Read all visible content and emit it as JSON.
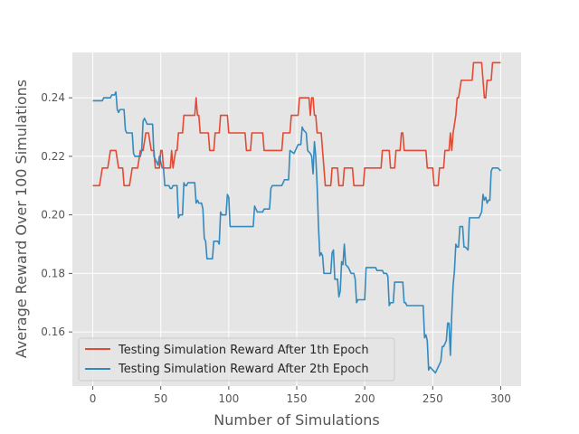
{
  "chart_data": {
    "type": "line",
    "title": "",
    "xlabel": "Number of Simulations",
    "ylabel": "Average Reward Over 100 Simulations",
    "xlim": [
      -15,
      315
    ],
    "ylim": [
      0.1415,
      0.2555
    ],
    "x_ticks": [
      0,
      50,
      100,
      150,
      200,
      250,
      300
    ],
    "y_ticks": [
      0.16,
      0.18,
      0.2,
      0.22,
      0.24
    ],
    "x_tick_labels": [
      "0",
      "50",
      "100",
      "150",
      "200",
      "250",
      "300"
    ],
    "y_tick_labels": [
      "0.16",
      "0.18",
      "0.20",
      "0.22",
      "0.24"
    ],
    "grid": true,
    "legend_position": "lower-left",
    "style": "ggplot",
    "series": [
      {
        "name": "Testing Simulation Reward After 1th Epoch",
        "color": "#E24A33",
        "points": [
          [
            0,
            0.21
          ],
          [
            5,
            0.21
          ],
          [
            7,
            0.216
          ],
          [
            11,
            0.216
          ],
          [
            13,
            0.222
          ],
          [
            17,
            0.222
          ],
          [
            19,
            0.216
          ],
          [
            22,
            0.216
          ],
          [
            23,
            0.21
          ],
          [
            27,
            0.21
          ],
          [
            29,
            0.216
          ],
          [
            33,
            0.216
          ],
          [
            35,
            0.222
          ],
          [
            37,
            0.222
          ],
          [
            39,
            0.228
          ],
          [
            41,
            0.228
          ],
          [
            43,
            0.222
          ],
          [
            45,
            0.222
          ],
          [
            46,
            0.216
          ],
          [
            49,
            0.216
          ],
          [
            50,
            0.222
          ],
          [
            51,
            0.222
          ],
          [
            52,
            0.216
          ],
          [
            57,
            0.216
          ],
          [
            58,
            0.222
          ],
          [
            59,
            0.216
          ],
          [
            61,
            0.222
          ],
          [
            62,
            0.222
          ],
          [
            63,
            0.228
          ],
          [
            66,
            0.228
          ],
          [
            67,
            0.234
          ],
          [
            75,
            0.234
          ],
          [
            76,
            0.24
          ],
          [
            77,
            0.234
          ],
          [
            78,
            0.234
          ],
          [
            79,
            0.228
          ],
          [
            85,
            0.228
          ],
          [
            86,
            0.222
          ],
          [
            89,
            0.222
          ],
          [
            90,
            0.228
          ],
          [
            93,
            0.228
          ],
          [
            94,
            0.234
          ],
          [
            99,
            0.234
          ],
          [
            100,
            0.228
          ],
          [
            112,
            0.228
          ],
          [
            113,
            0.222
          ],
          [
            116,
            0.222
          ],
          [
            117,
            0.228
          ],
          [
            125,
            0.228
          ],
          [
            126,
            0.222
          ],
          [
            139,
            0.222
          ],
          [
            140,
            0.228
          ],
          [
            145,
            0.228
          ],
          [
            146,
            0.234
          ],
          [
            151,
            0.234
          ],
          [
            152,
            0.24
          ],
          [
            159,
            0.24
          ],
          [
            160,
            0.234
          ],
          [
            161,
            0.24
          ],
          [
            162,
            0.24
          ],
          [
            163,
            0.234
          ],
          [
            164,
            0.234
          ],
          [
            165,
            0.228
          ],
          [
            168,
            0.228
          ],
          [
            169,
            0.222
          ],
          [
            170,
            0.216
          ],
          [
            171,
            0.21
          ],
          [
            175,
            0.21
          ],
          [
            176,
            0.216
          ],
          [
            180,
            0.216
          ],
          [
            181,
            0.21
          ],
          [
            184,
            0.21
          ],
          [
            185,
            0.216
          ],
          [
            191,
            0.216
          ],
          [
            192,
            0.21
          ],
          [
            199,
            0.21
          ],
          [
            200,
            0.216
          ],
          [
            212,
            0.216
          ],
          [
            213,
            0.222
          ],
          [
            218,
            0.222
          ],
          [
            219,
            0.216
          ],
          [
            222,
            0.216
          ],
          [
            223,
            0.222
          ],
          [
            226,
            0.222
          ],
          [
            227,
            0.228
          ],
          [
            228,
            0.228
          ],
          [
            229,
            0.222
          ],
          [
            245,
            0.222
          ],
          [
            246,
            0.216
          ],
          [
            250,
            0.216
          ],
          [
            251,
            0.21
          ],
          [
            254,
            0.21
          ],
          [
            255,
            0.216
          ],
          [
            258,
            0.216
          ],
          [
            259,
            0.222
          ],
          [
            262,
            0.222
          ],
          [
            263,
            0.228
          ],
          [
            264,
            0.222
          ],
          [
            265,
            0.228
          ],
          [
            267,
            0.234
          ],
          [
            268,
            0.24
          ],
          [
            269,
            0.24
          ],
          [
            271,
            0.246
          ],
          [
            279,
            0.246
          ],
          [
            280,
            0.252
          ],
          [
            286,
            0.252
          ],
          [
            287,
            0.246
          ],
          [
            288,
            0.24
          ],
          [
            289,
            0.24
          ],
          [
            290,
            0.246
          ],
          [
            293,
            0.246
          ],
          [
            294,
            0.252
          ],
          [
            300,
            0.252
          ]
        ]
      },
      {
        "name": "Testing Simulation Reward After 2th Epoch",
        "color": "#348ABD",
        "points": [
          [
            0,
            0.239
          ],
          [
            7,
            0.239
          ],
          [
            8,
            0.24
          ],
          [
            13,
            0.24
          ],
          [
            14,
            0.241
          ],
          [
            16,
            0.241
          ],
          [
            17,
            0.242
          ],
          [
            18,
            0.236
          ],
          [
            19,
            0.235
          ],
          [
            20,
            0.236
          ],
          [
            23,
            0.236
          ],
          [
            24,
            0.229
          ],
          [
            25,
            0.228
          ],
          [
            29,
            0.228
          ],
          [
            30,
            0.221
          ],
          [
            31,
            0.22
          ],
          [
            35,
            0.22
          ],
          [
            36,
            0.222
          ],
          [
            37,
            0.232
          ],
          [
            38,
            0.233
          ],
          [
            39,
            0.232
          ],
          [
            40,
            0.231
          ],
          [
            44,
            0.231
          ],
          [
            45,
            0.22
          ],
          [
            47,
            0.218
          ],
          [
            48,
            0.217
          ],
          [
            49,
            0.22
          ],
          [
            50,
            0.218
          ],
          [
            51,
            0.216
          ],
          [
            52,
            0.216
          ],
          [
            53,
            0.21
          ],
          [
            56,
            0.21
          ],
          [
            57,
            0.209
          ],
          [
            58,
            0.209
          ],
          [
            59,
            0.21
          ],
          [
            62,
            0.21
          ],
          [
            63,
            0.199
          ],
          [
            64,
            0.2
          ],
          [
            66,
            0.2
          ],
          [
            67,
            0.211
          ],
          [
            68,
            0.21
          ],
          [
            69,
            0.21
          ],
          [
            70,
            0.211
          ],
          [
            75,
            0.211
          ],
          [
            76,
            0.204
          ],
          [
            77,
            0.205
          ],
          [
            78,
            0.204
          ],
          [
            80,
            0.204
          ],
          [
            81,
            0.202
          ],
          [
            82,
            0.192
          ],
          [
            83,
            0.191
          ],
          [
            84,
            0.185
          ],
          [
            88,
            0.185
          ],
          [
            89,
            0.191
          ],
          [
            92,
            0.191
          ],
          [
            93,
            0.19
          ],
          [
            94,
            0.201
          ],
          [
            95,
            0.2
          ],
          [
            98,
            0.2
          ],
          [
            99,
            0.207
          ],
          [
            100,
            0.206
          ],
          [
            101,
            0.196
          ],
          [
            118,
            0.196
          ],
          [
            119,
            0.203
          ],
          [
            120,
            0.202
          ],
          [
            121,
            0.201
          ],
          [
            125,
            0.201
          ],
          [
            126,
            0.202
          ],
          [
            130,
            0.202
          ],
          [
            131,
            0.209
          ],
          [
            132,
            0.21
          ],
          [
            139,
            0.21
          ],
          [
            140,
            0.211
          ],
          [
            141,
            0.212
          ],
          [
            144,
            0.212
          ],
          [
            145,
            0.222
          ],
          [
            148,
            0.221
          ],
          [
            149,
            0.222
          ],
          [
            151,
            0.224
          ],
          [
            153,
            0.224
          ],
          [
            154,
            0.23
          ],
          [
            155,
            0.229
          ],
          [
            157,
            0.228
          ],
          [
            158,
            0.222
          ],
          [
            160,
            0.221
          ],
          [
            161,
            0.22
          ],
          [
            162,
            0.214
          ],
          [
            163,
            0.225
          ],
          [
            164,
            0.22
          ],
          [
            165,
            0.21
          ],
          [
            166,
            0.196
          ],
          [
            167,
            0.186
          ],
          [
            168,
            0.187
          ],
          [
            169,
            0.186
          ],
          [
            170,
            0.18
          ],
          [
            175,
            0.18
          ],
          [
            176,
            0.187
          ],
          [
            177,
            0.188
          ],
          [
            178,
            0.178
          ],
          [
            180,
            0.178
          ],
          [
            181,
            0.172
          ],
          [
            182,
            0.174
          ],
          [
            183,
            0.184
          ],
          [
            184,
            0.183
          ],
          [
            185,
            0.19
          ],
          [
            186,
            0.183
          ],
          [
            188,
            0.182
          ],
          [
            189,
            0.181
          ],
          [
            190,
            0.18
          ],
          [
            192,
            0.18
          ],
          [
            193,
            0.178
          ],
          [
            194,
            0.17
          ],
          [
            195,
            0.171
          ],
          [
            200,
            0.171
          ],
          [
            201,
            0.182
          ],
          [
            208,
            0.182
          ],
          [
            209,
            0.181
          ],
          [
            213,
            0.181
          ],
          [
            214,
            0.18
          ],
          [
            216,
            0.18
          ],
          [
            217,
            0.179
          ],
          [
            218,
            0.169
          ],
          [
            219,
            0.17
          ],
          [
            221,
            0.17
          ],
          [
            222,
            0.177
          ],
          [
            228,
            0.177
          ],
          [
            229,
            0.17
          ],
          [
            230,
            0.17
          ],
          [
            231,
            0.169
          ],
          [
            243,
            0.169
          ],
          [
            244,
            0.158
          ],
          [
            245,
            0.159
          ],
          [
            246,
            0.157
          ],
          [
            247,
            0.147
          ],
          [
            248,
            0.148
          ],
          [
            250,
            0.147
          ],
          [
            252,
            0.146
          ],
          [
            253,
            0.147
          ],
          [
            254,
            0.148
          ],
          [
            256,
            0.15
          ],
          [
            257,
            0.155
          ],
          [
            258,
            0.155
          ],
          [
            259,
            0.156
          ],
          [
            260,
            0.157
          ],
          [
            261,
            0.163
          ],
          [
            262,
            0.163
          ],
          [
            263,
            0.152
          ],
          [
            264,
            0.166
          ],
          [
            265,
            0.176
          ],
          [
            266,
            0.181
          ],
          [
            267,
            0.19
          ],
          [
            268,
            0.189
          ],
          [
            269,
            0.189
          ],
          [
            270,
            0.196
          ],
          [
            272,
            0.196
          ],
          [
            273,
            0.189
          ],
          [
            274,
            0.189
          ],
          [
            276,
            0.188
          ],
          [
            277,
            0.199
          ],
          [
            284,
            0.199
          ],
          [
            285,
            0.2
          ],
          [
            286,
            0.201
          ],
          [
            287,
            0.207
          ],
          [
            288,
            0.205
          ],
          [
            289,
            0.206
          ],
          [
            290,
            0.204
          ],
          [
            291,
            0.205
          ],
          [
            292,
            0.205
          ],
          [
            293,
            0.215
          ],
          [
            294,
            0.216
          ],
          [
            298,
            0.216
          ],
          [
            300,
            0.215
          ]
        ]
      }
    ]
  }
}
